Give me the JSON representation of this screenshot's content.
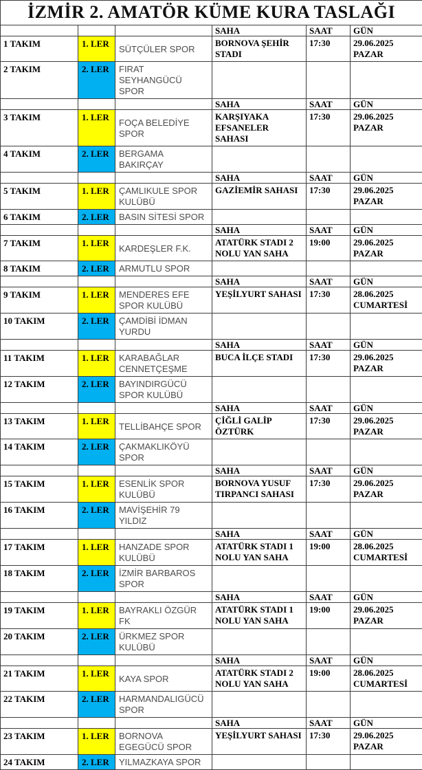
{
  "title": "İZMİR 2. AMATÖR KÜME  KURA TASLAĞI",
  "column_headers": {
    "saha": "SAHA",
    "saat": "SAAT",
    "gun": "GÜN"
  },
  "colors": {
    "ler1_bg": "#FFFF00",
    "ler2_bg": "#00B0F0",
    "team_text": "#4d4d4d",
    "border": "#3d3d3d"
  },
  "groups": [
    {
      "saha": "BORNOVA ŞEHİR STADI",
      "saat": "17:30",
      "gun": "29.06.2025 PAZAR",
      "rows": [
        {
          "takim": "1 TAKIM",
          "ler": "1. LER",
          "team": "SÜTÇÜLER SPOR"
        },
        {
          "takim": "2 TAKIM",
          "ler": "2. LER",
          "team": "FIRAT SEYHANGÜCÜ SPOR"
        }
      ]
    },
    {
      "saha": "KARŞIYAKA EFSANELER SAHASI",
      "saat": "17:30",
      "gun": "29.06.2025 PAZAR",
      "rows": [
        {
          "takim": "3 TAKIM",
          "ler": "1. LER",
          "team": "FOÇA BELEDİYE SPOR"
        },
        {
          "takim": "4 TAKIM",
          "ler": "2. LER",
          "team": "BERGAMA BAKIRÇAY"
        }
      ]
    },
    {
      "saha": "GAZİEMİR SAHASI",
      "saat": "17:30",
      "gun": "29.06.2025 PAZAR",
      "rows": [
        {
          "takim": "5 TAKIM",
          "ler": "1. LER",
          "team": "ÇAMLIKULE SPOR KULÜBÜ"
        },
        {
          "takim": "6 TAKIM",
          "ler": "2. LER",
          "team": "BASIN SİTESİ SPOR"
        }
      ]
    },
    {
      "saha": "ATATÜRK STADI 2 NOLU YAN SAHA",
      "saat": "19:00",
      "gun": "29.06.2025 PAZAR",
      "rows": [
        {
          "takim": "7 TAKIM",
          "ler": "1. LER",
          "team": "KARDEŞLER F.K."
        },
        {
          "takim": "8 TAKIM",
          "ler": "2. LER",
          "team": "ARMUTLU SPOR"
        }
      ]
    },
    {
      "saha": "YEŞİLYURT SAHASI",
      "saat": "17:30",
      "gun": "28.06.2025 CUMARTESİ",
      "rows": [
        {
          "takim": "9 TAKIM",
          "ler": "1. LER",
          "team": "MENDERES EFE SPOR KULÜBÜ"
        },
        {
          "takim": "10 TAKIM",
          "ler": "2. LER",
          "team": "ÇAMDİBİ İDMAN YURDU"
        }
      ]
    },
    {
      "saha": "BUCA İLÇE STADI",
      "saat": "17:30",
      "gun": "29.06.2025 PAZAR",
      "rows": [
        {
          "takim": "11 TAKIM",
          "ler": "1. LER",
          "team": "KARABAĞLAR CENNETÇEŞME"
        },
        {
          "takim": "12 TAKIM",
          "ler": "2. LER",
          "team": "BAYINDIRGÜCÜ SPOR KULÜBÜ"
        }
      ]
    },
    {
      "saha": "ÇİĞLİ GALİP ÖZTÜRK",
      "saat": "17:30",
      "gun": "29.06.2025 PAZAR",
      "rows": [
        {
          "takim": "13 TAKIM",
          "ler": "1. LER",
          "team": "TELLİBAHÇE SPOR"
        },
        {
          "takim": "14 TAKIM",
          "ler": "2. LER",
          "team": "ÇAKMAKLIKÖYÜ SPOR"
        }
      ]
    },
    {
      "saha": "BORNOVA YUSUF TIRPANCI SAHASI",
      "saat": "17:30",
      "gun": "29.06.2025 PAZAR",
      "rows": [
        {
          "takim": "15 TAKIM",
          "ler": "1. LER",
          "team": "ESENLİK SPOR KULÜBÜ"
        },
        {
          "takim": "16 TAKIM",
          "ler": "2. LER",
          "team": "MAVİŞEHİR 79 YILDIZ"
        }
      ]
    },
    {
      "saha": "ATATÜRK STADI 1 NOLU YAN SAHA",
      "saat": "19:00",
      "gun": "28.06.2025 CUMARTESİ",
      "rows": [
        {
          "takim": "17 TAKIM",
          "ler": "1. LER",
          "team": "HANZADE SPOR KULÜBÜ"
        },
        {
          "takim": "18 TAKIM",
          "ler": "2. LER",
          "team": "İZMİR BARBAROS SPOR"
        }
      ]
    },
    {
      "saha": "ATATÜRK STADI 1 NOLU YAN SAHA",
      "saat": "19:00",
      "gun": "29.06.2025 PAZAR",
      "rows": [
        {
          "takim": "19 TAKIM",
          "ler": "1. LER",
          "team": "BAYRAKLI ÖZGÜR FK"
        },
        {
          "takim": "20 TAKIM",
          "ler": "2. LER",
          "team": "ÜRKMEZ SPOR KULÜBÜ"
        }
      ]
    },
    {
      "saha": "ATATÜRK STADI 2 NOLU YAN SAHA",
      "saat": "19:00",
      "gun": "28.06.2025 CUMARTESİ",
      "rows": [
        {
          "takim": "21 TAKIM",
          "ler": "1. LER",
          "team": "KAYA SPOR"
        },
        {
          "takim": "22 TAKIM",
          "ler": "2. LER",
          "team": "HARMANDALIGÜCÜ SPOR"
        }
      ]
    },
    {
      "saha": "YEŞİLYURT SAHASI",
      "saat": "17:30",
      "gun": "29.06.2025 PAZAR",
      "rows": [
        {
          "takim": "23 TAKIM",
          "ler": "1. LER",
          "team": "BORNOVA EGEGÜCÜ SPOR"
        },
        {
          "takim": "24 TAKIM",
          "ler": "2. LER",
          "team": "YILMAZKAYA SPOR"
        }
      ]
    }
  ]
}
